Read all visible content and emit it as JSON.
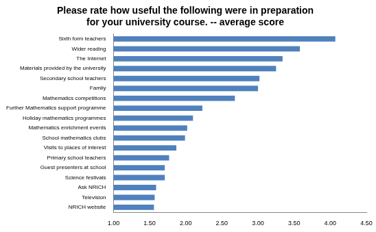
{
  "chart_data": {
    "type": "bar",
    "orientation": "horizontal",
    "title": [
      "Please rate how useful the following were in preparation",
      "for your university course. -- average score"
    ],
    "categories": [
      "Sixth form teachers",
      "Wider reading",
      "The Internet",
      "Materials provided by the university",
      "Secondary school teachers",
      "Family",
      "Mathematics competitions",
      "Further Mathematics support programme",
      "Holiday mathematics programmes",
      "Mathematics enrichment events",
      "School mathematics clubs",
      "Visits to places of interest",
      "Primary school teachers",
      "Guest presenters at school",
      "Science festivals",
      "Ask NRICH",
      "Television",
      "NRICH website"
    ],
    "values": [
      4.07,
      3.58,
      3.34,
      3.25,
      3.02,
      3.0,
      2.68,
      2.23,
      2.1,
      2.02,
      1.99,
      1.87,
      1.77,
      1.71,
      1.71,
      1.59,
      1.57,
      1.56
    ],
    "color": "#4f81bd",
    "xlim": [
      1,
      4.5
    ],
    "xticks": [
      {
        "value": 1,
        "label": "1.00"
      },
      {
        "value": 1.5,
        "label": "1.50"
      },
      {
        "value": 2,
        "label": "2.00"
      },
      {
        "value": 2.5,
        "label": "2.50"
      },
      {
        "value": 3,
        "label": "3.00"
      },
      {
        "value": 3.5,
        "label": "3.50"
      },
      {
        "value": 4,
        "label": "4.00"
      },
      {
        "value": 4.5,
        "label": "4.50"
      }
    ],
    "grid": false
  }
}
